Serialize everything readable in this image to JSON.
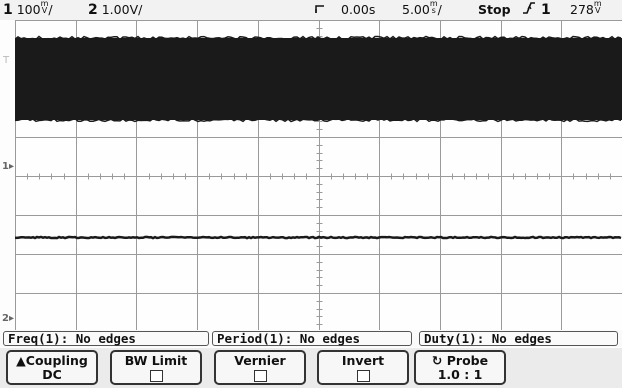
{
  "status": {
    "ch1_num": "1",
    "ch1_scale": "100",
    "ch1_unit_top": "m",
    "ch1_unit_bottom": "V",
    "ch2_num": "2",
    "ch2_scale": "1.00V/",
    "trigger_edge_icon": "trigger-edge-icon",
    "delay": "0.00s",
    "timebase": "5.00",
    "timebase_unit_top": "m",
    "timebase_unit_bottom": "s",
    "run_state": "Stop",
    "trigger_source": "1",
    "trigger_level": "278",
    "trigger_level_unit_top": "m",
    "trigger_level_unit_bottom": "V"
  },
  "markers": {
    "ground_1": "1",
    "ground_2": "2",
    "trig_level": "T"
  },
  "measurements": {
    "freq_label": "Freq(",
    "freq_ch": "1",
    "freq_value": "): No edges",
    "period_label": "Period(",
    "period_ch": "1",
    "period_value": "): No edges",
    "duty_label": "Duty(",
    "duty_ch": "1",
    "duty_value": "): No edges"
  },
  "softkeys": {
    "coupling_label": "Coupling",
    "coupling_value": "DC",
    "bw_limit_label": "BW Limit",
    "vernier_label": "Vernier",
    "invert_label": "Invert",
    "probe_label": "Probe",
    "probe_value": "1.0 : 1"
  },
  "colors": {
    "trace": "#1a1a1a",
    "grid": "#9a9a9a"
  }
}
